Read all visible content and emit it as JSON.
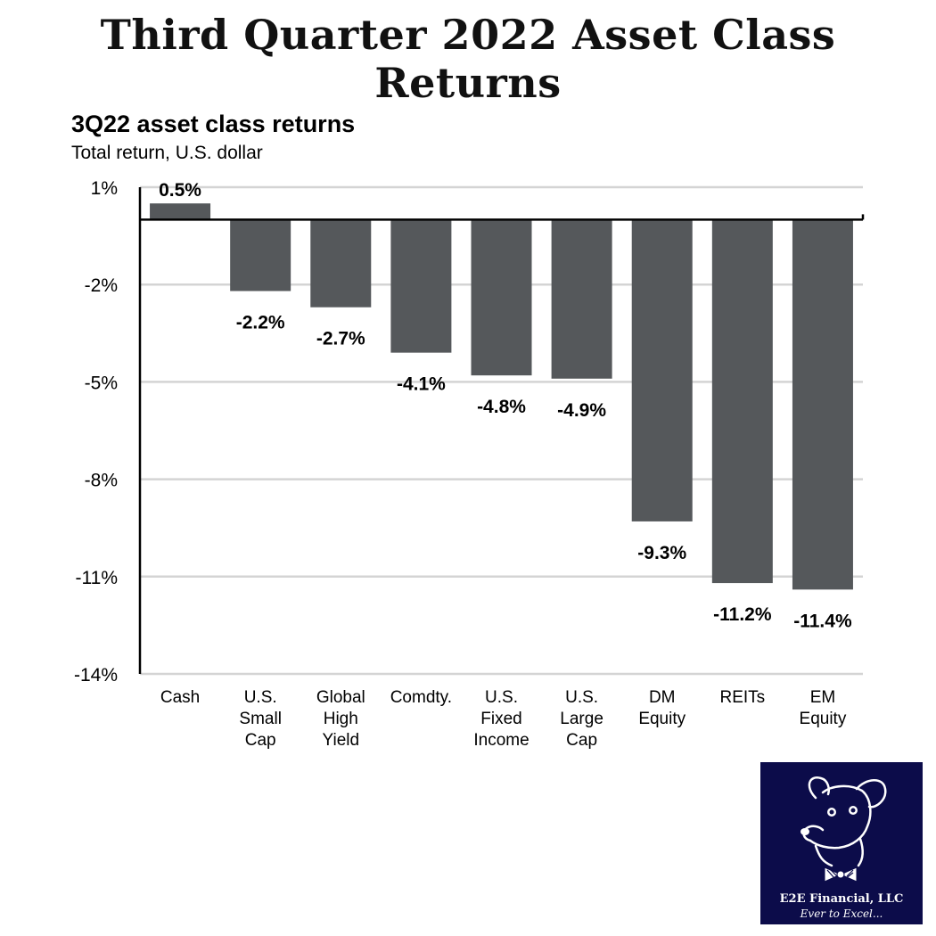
{
  "page": {
    "title": "Third Quarter 2022 Asset Class Returns"
  },
  "chart_data": {
    "type": "bar",
    "title": "3Q22 asset class returns",
    "subtitle": "Total return, U.S. dollar",
    "categories": [
      [
        "Cash"
      ],
      [
        "U.S.",
        "Small",
        "Cap"
      ],
      [
        "Global",
        "High",
        "Yield"
      ],
      [
        "Comdty."
      ],
      [
        "U.S.",
        "Fixed",
        "Income"
      ],
      [
        "U.S.",
        "Large",
        "Cap"
      ],
      [
        "DM",
        "Equity"
      ],
      [
        "REITs"
      ],
      [
        "EM",
        "Equity"
      ]
    ],
    "values": [
      0.5,
      -2.2,
      -2.7,
      -4.1,
      -4.8,
      -4.9,
      -9.3,
      -11.2,
      -11.4
    ],
    "value_labels": [
      "0.5%",
      "-2.2%",
      "-2.7%",
      "-4.1%",
      "-4.8%",
      "-4.9%",
      "-9.3%",
      "-11.2%",
      "-11.4%"
    ],
    "yticks": [
      1,
      -2,
      -5,
      -8,
      -11,
      -14
    ],
    "ytick_labels": [
      "1%",
      "-2%",
      "-5%",
      "-8%",
      "-11%",
      "-14%"
    ],
    "ylim": [
      -14,
      1
    ],
    "grid": true,
    "colors": {
      "bar": "#55585b",
      "grid": "#d4d4d4",
      "axis": "#000000"
    }
  },
  "logo": {
    "name": "E2E Financial, LLC",
    "tagline": "Ever to Excel...",
    "background": "#0c0c4a"
  }
}
